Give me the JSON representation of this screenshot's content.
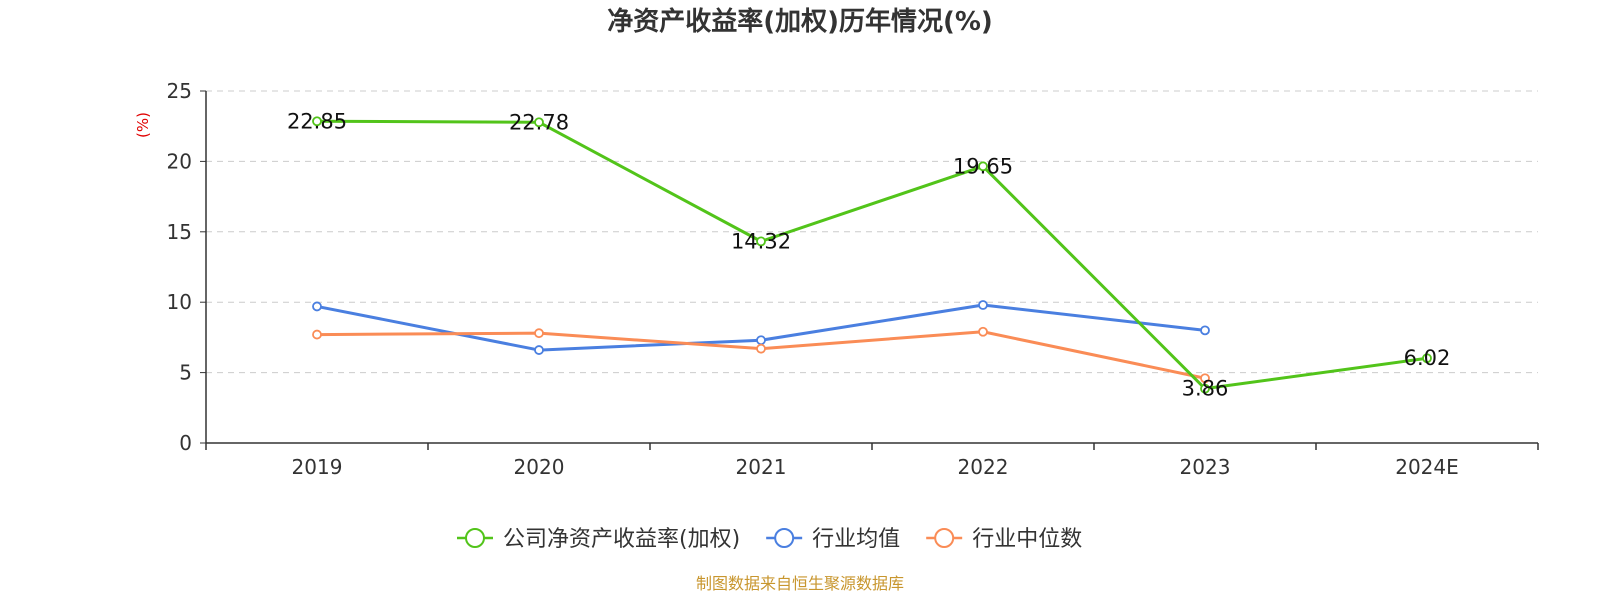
{
  "chart_data": {
    "type": "line",
    "title": "净资产收益率(加权)历年情况(%)",
    "ylabel": "(%)",
    "xlabel": "",
    "categories": [
      "2019",
      "2020",
      "2021",
      "2022",
      "2023",
      "2024E"
    ],
    "ylim": [
      0,
      25
    ],
    "yticks": [
      0,
      5,
      10,
      15,
      20,
      25
    ],
    "grid": true,
    "legend": "bottom-center",
    "series": [
      {
        "name": "公司净资产收益率(加权)",
        "color": "#52c41a",
        "values": [
          22.85,
          22.78,
          14.32,
          19.65,
          3.86,
          6.02
        ],
        "labels": true
      },
      {
        "name": "行业均值",
        "color": "#4a7fe0",
        "values": [
          9.7,
          6.6,
          7.3,
          9.8,
          8.0,
          null
        ],
        "labels": false
      },
      {
        "name": "行业中位数",
        "color": "#fa8c56",
        "values": [
          7.7,
          7.8,
          6.7,
          7.9,
          4.6,
          null
        ],
        "labels": false
      }
    ]
  },
  "source_note": "制图数据来自恒生聚源数据库",
  "colors": {
    "axis": "#333333",
    "grid": "#cccccc",
    "ylabel": "#e00000",
    "source": "#c8962e"
  }
}
